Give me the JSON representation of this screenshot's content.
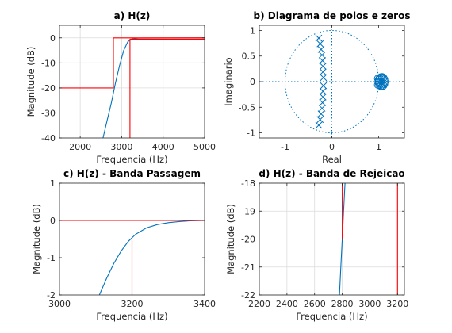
{
  "colors": {
    "response": "#0072BD",
    "mask": "#FF0000",
    "axis": "#262626",
    "grid": "#DCDCDC"
  },
  "chart_data": [
    {
      "id": "a",
      "type": "line",
      "title": "a) H(z)",
      "xlabel": "Frequencia (Hz)",
      "ylabel": "Magnitude (dB)",
      "xlim": [
        1500,
        5000
      ],
      "ylim": [
        -40,
        5
      ],
      "xticks": [
        2000,
        3000,
        4000,
        5000
      ],
      "yticks": [
        -40,
        -30,
        -20,
        -10,
        0
      ],
      "grid": true,
      "series": [
        {
          "role": "response",
          "x": [
            2550,
            2650,
            2750,
            2850,
            2950,
            3050,
            3150,
            3250,
            3400,
            5000
          ],
          "y": [
            -40,
            -33,
            -26,
            -18,
            -11,
            -5,
            -1.5,
            -0.4,
            -0.1,
            0
          ]
        },
        {
          "role": "mask",
          "x": [
            1500,
            2800,
            2800,
            5000
          ],
          "y": [
            -20,
            -20,
            0,
            0
          ]
        },
        {
          "role": "mask",
          "x": [
            3200,
            3200,
            5000
          ],
          "y": [
            -40,
            -0.5,
            -0.5
          ]
        }
      ]
    },
    {
      "id": "b",
      "type": "scatter",
      "title": "b) Diagrama de polos e zeros",
      "xlabel": "Real",
      "ylabel": "Imaginario",
      "xlim": [
        -1.55,
        1.55
      ],
      "ylim": [
        -1.1,
        1.1
      ],
      "xticks": [
        -1,
        0,
        1
      ],
      "yticks": [
        -1,
        -0.5,
        0,
        0.5,
        1
      ],
      "grid": false,
      "unit_circle": true,
      "poles": [
        {
          "re": -0.28,
          "im": 0.85
        },
        {
          "re": -0.28,
          "im": -0.85
        },
        {
          "re": -0.25,
          "im": 0.74
        },
        {
          "re": -0.25,
          "im": -0.74
        },
        {
          "re": -0.23,
          "im": 0.63
        },
        {
          "re": -0.23,
          "im": -0.63
        },
        {
          "re": -0.21,
          "im": 0.52
        },
        {
          "re": -0.21,
          "im": -0.52
        },
        {
          "re": -0.2,
          "im": 0.41
        },
        {
          "re": -0.2,
          "im": -0.41
        },
        {
          "re": -0.19,
          "im": 0.3
        },
        {
          "re": -0.19,
          "im": -0.3
        },
        {
          "re": -0.19,
          "im": 0.19
        },
        {
          "re": -0.19,
          "im": -0.19
        },
        {
          "re": -0.18,
          "im": 0.08
        },
        {
          "re": -0.18,
          "im": -0.08
        }
      ],
      "zeros": [
        {
          "re": 1.0,
          "im": 0
        },
        {
          "re": 1.005,
          "im": 0.035
        },
        {
          "re": 1.005,
          "im": -0.035
        },
        {
          "re": 1.02,
          "im": 0.065
        },
        {
          "re": 1.02,
          "im": -0.065
        },
        {
          "re": 1.045,
          "im": 0.085
        },
        {
          "re": 1.045,
          "im": -0.085
        },
        {
          "re": 1.075,
          "im": 0.09
        },
        {
          "re": 1.075,
          "im": -0.09
        },
        {
          "re": 1.1,
          "im": 0.075
        },
        {
          "re": 1.1,
          "im": -0.075
        },
        {
          "re": 1.12,
          "im": 0.045
        },
        {
          "re": 1.12,
          "im": -0.045
        },
        {
          "re": 1.13,
          "im": 0
        },
        {
          "re": 0.985,
          "im": 0.06
        },
        {
          "re": 0.985,
          "im": -0.06
        }
      ]
    },
    {
      "id": "c",
      "type": "line",
      "title": "c) H(z) - Banda Passagem",
      "xlabel": "Frequencia (Hz)",
      "ylabel": "Magnitude (dB)",
      "xlim": [
        3000,
        3400
      ],
      "ylim": [
        -2,
        1
      ],
      "xticks": [
        3000,
        3200,
        3400
      ],
      "yticks": [
        -2,
        -1,
        0,
        1
      ],
      "grid": false,
      "series": [
        {
          "role": "response",
          "x": [
            3110,
            3130,
            3150,
            3170,
            3190,
            3210,
            3240,
            3270,
            3300,
            3330,
            3360,
            3400
          ],
          "y": [
            -2,
            -1.55,
            -1.15,
            -0.82,
            -0.56,
            -0.37,
            -0.2,
            -0.11,
            -0.06,
            -0.03,
            -0.01,
            0
          ]
        },
        {
          "role": "mask",
          "x": [
            3000,
            3400
          ],
          "y": [
            0,
            0
          ]
        },
        {
          "role": "mask",
          "x": [
            3200,
            3200,
            3400
          ],
          "y": [
            -2,
            -0.5,
            -0.5
          ]
        }
      ]
    },
    {
      "id": "d",
      "type": "line",
      "title": "d) H(z) - Banda de Rejeicao",
      "xlabel": "Frequencia (Hz)",
      "ylabel": "Magnitude (dB)",
      "xlim": [
        2200,
        3250
      ],
      "ylim": [
        -22,
        -18
      ],
      "xticks": [
        2200,
        2400,
        2600,
        2800,
        3000,
        3200
      ],
      "yticks": [
        -22,
        -21,
        -20,
        -19,
        -18
      ],
      "grid": true,
      "series": [
        {
          "role": "response",
          "x": [
            2780,
            2790,
            2800,
            2810,
            2820
          ],
          "y": [
            -22,
            -21,
            -20,
            -19,
            -18
          ]
        },
        {
          "role": "mask",
          "x": [
            2200,
            2800,
            2800
          ],
          "y": [
            -20,
            -20,
            -18
          ]
        },
        {
          "role": "mask",
          "x": [
            3200,
            3200
          ],
          "y": [
            -22,
            -18
          ]
        }
      ]
    }
  ]
}
